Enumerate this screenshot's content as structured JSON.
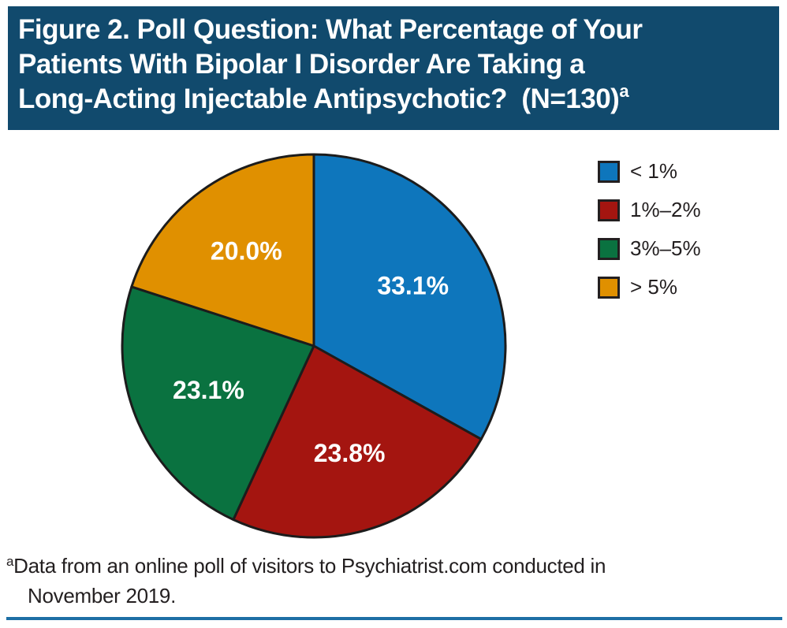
{
  "figure": {
    "title_line1": "Figure 2. Poll Question: What Percentage of Your",
    "title_line2": "Patients With Bipolar I Disorder Are Taking a",
    "title_line3": "Long-Acting Injectable Antipsychotic?  (N=130)",
    "title_superscript": "a"
  },
  "footnote": {
    "marker": "a",
    "line1": "Data from an online poll of visitors to Psychiatrist.com conducted in",
    "line2": "November 2019."
  },
  "colors": {
    "header_background": "#114A6D",
    "slice_outline": "#1C1C1C",
    "slice_label_text": "#FFFFFF",
    "legend_text": "#231F20",
    "bottom_rule": "#1D6FA5"
  },
  "chart_data": {
    "type": "pie",
    "title": "Figure 2. Poll Question: What Percentage of Your Patients With Bipolar I Disorder Are Taking a Long-Acting Injectable Antipsychotic? (N=130)",
    "sample_size": 130,
    "start_angle": "12 o'clock, clockwise",
    "legend_position": "top-right",
    "slices": [
      {
        "legend_label": "< 1%",
        "value_percent": 33.1,
        "data_label": "33.1%",
        "color": "#0E76BC"
      },
      {
        "legend_label": "1%–2%",
        "value_percent": 23.8,
        "data_label": "23.8%",
        "color": "#A41510"
      },
      {
        "legend_label": "3%–5%",
        "value_percent": 23.1,
        "data_label": "23.1%",
        "color": "#0A7240"
      },
      {
        "legend_label": "> 5%",
        "value_percent": 20.0,
        "data_label": "20.0%",
        "color": "#E09000"
      }
    ]
  }
}
